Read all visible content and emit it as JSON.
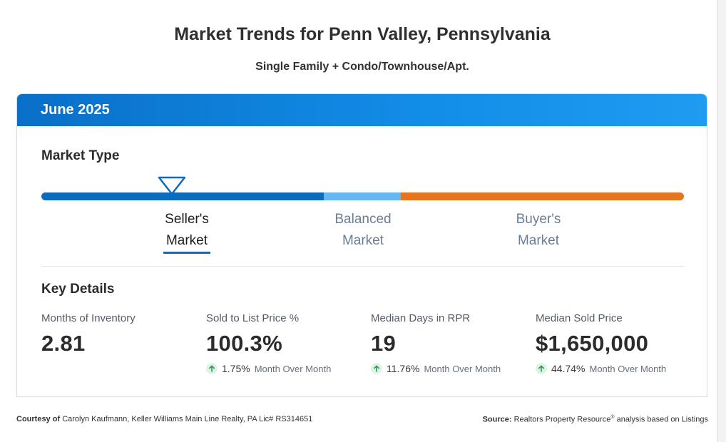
{
  "page": {
    "title": "Market Trends for Penn Valley, Pennsylvania",
    "subtitle": "Single Family + Condo/Townhouse/Apt."
  },
  "card": {
    "period": "June 2025",
    "market_type": {
      "title": "Market Type",
      "current": "Seller's Market",
      "labels": [
        {
          "line1": "Seller's",
          "line2": "Market"
        },
        {
          "line1": "Balanced",
          "line2": "Market"
        },
        {
          "line1": "Buyer's",
          "line2": "Market"
        }
      ],
      "colors": {
        "seller": "#0a6cbf",
        "balanced": "#62b7f4",
        "buyer": "#e8741e"
      }
    },
    "key_details": {
      "title": "Key Details",
      "items": [
        {
          "label": "Months of Inventory",
          "value": "2.81",
          "change": "",
          "change_label": ""
        },
        {
          "label": "Sold to List Price %",
          "value": "100.3%",
          "change": "1.75%",
          "change_label": "Month Over Month"
        },
        {
          "label": "Median Days in RPR",
          "value": "19",
          "change": "11.76%",
          "change_label": "Month Over Month"
        },
        {
          "label": "Median Sold Price",
          "value": "$1,650,000",
          "change": "44.74%",
          "change_label": "Month Over Month"
        }
      ]
    }
  },
  "footer": {
    "courtesy_label": "Courtesy of",
    "courtesy_text": "Carolyn Kaufmann, Keller Williams Main Line Realty, PA Lic# RS314651",
    "source_label": "Source:",
    "source_text_1": "Realtors Property Resource",
    "source_reg": "®",
    "source_text_2": "analysis based on Listings"
  }
}
